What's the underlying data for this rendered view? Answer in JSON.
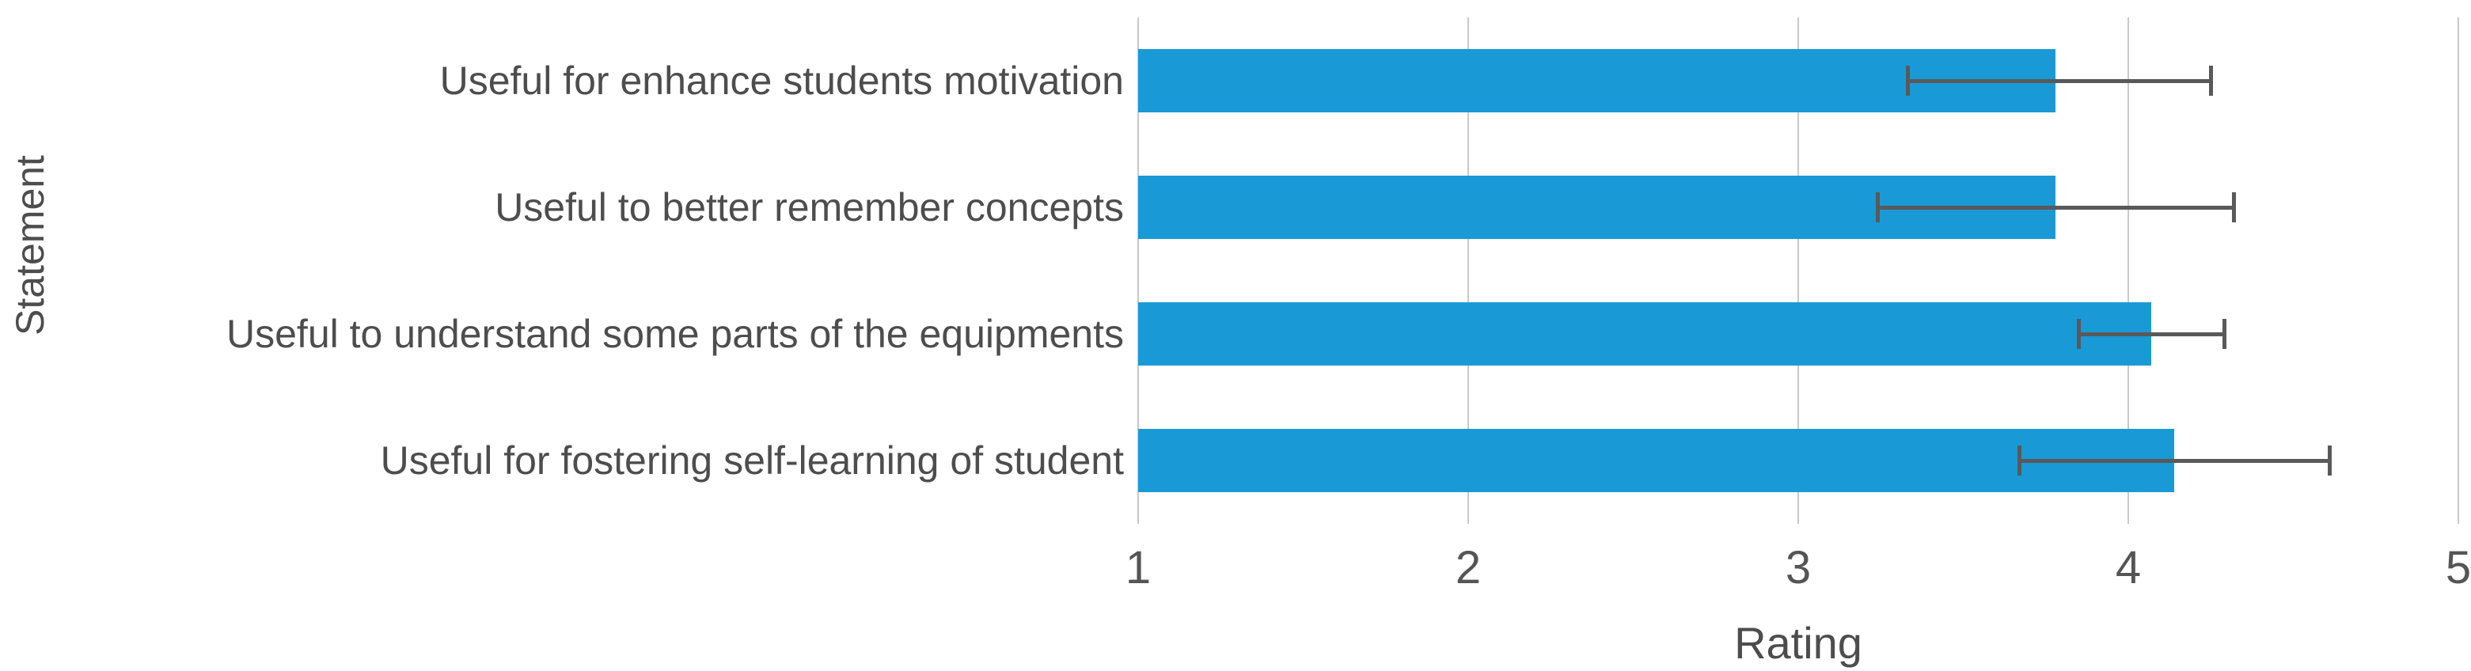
{
  "chart_data": {
    "type": "bar",
    "orientation": "horizontal",
    "title": "",
    "xlabel": "Rating",
    "ylabel": "Statement",
    "xlim": [
      1,
      5
    ],
    "xticks": [
      1,
      2,
      3,
      4,
      5
    ],
    "grid": "vertical",
    "legend_position": "none",
    "categories": [
      "Useful for enhance students motivation",
      "Useful to better remember concepts",
      "Useful to understand some parts of the equipments",
      "Useful for fostering self-learning of student"
    ],
    "series": [
      {
        "name": "Rating",
        "values": [
          3.78,
          3.78,
          4.07,
          4.14
        ],
        "error_low": [
          3.33,
          3.24,
          3.85,
          3.67
        ],
        "error_high": [
          4.25,
          4.32,
          4.29,
          4.61
        ]
      }
    ],
    "colors": {
      "bar": "#199AD6",
      "error_bar": "#595959",
      "gridline": "#C9C9C9",
      "axis_text": "#4d4d4d"
    }
  }
}
